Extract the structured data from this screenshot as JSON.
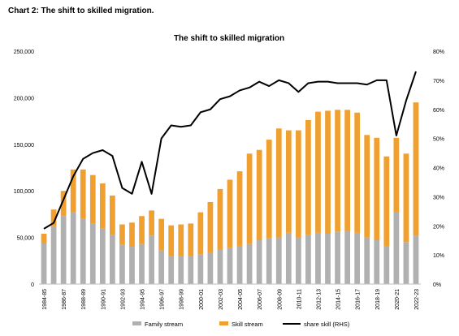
{
  "header": {
    "title": "Chart 2: The shift to skilled migration."
  },
  "chart_data": {
    "type": "bar",
    "stacked": true,
    "title": "The shift to skilled migration",
    "categories": [
      "1984-85",
      "1985-86",
      "1986-87",
      "1987-88",
      "1988-89",
      "1989-90",
      "1990-91",
      "1991-92",
      "1992-93",
      "1993-94",
      "1994-95",
      "1995-96",
      "1996-97",
      "1997-98",
      "1998-99",
      "1999-00",
      "2000-01",
      "2001-02",
      "2002-03",
      "2003-04",
      "2004-05",
      "2005-06",
      "2006-07",
      "2007-08",
      "2008-09",
      "2009-10",
      "2010-11",
      "2011-12",
      "2012-13",
      "2013-14",
      "2014-15",
      "2015-16",
      "2016-17",
      "2017-18",
      "2018-19",
      "2019-20",
      "2020-21",
      "2021-22",
      "2022-23"
    ],
    "tick_labels": [
      "1984-85",
      "1986-87",
      "1988-89",
      "1990-91",
      "1992-93",
      "1994-95",
      "1996-97",
      "1998-99",
      "2000-01",
      "2002-03",
      "2004-05",
      "2006-07",
      "2008-09",
      "2010-11",
      "2012-13",
      "2014-15",
      "2016-17",
      "2018-19",
      "2020-21",
      "2022-23"
    ],
    "series": [
      {
        "name": "Family stream",
        "color": "#b0b0b0",
        "values": [
          44000,
          62000,
          73000,
          77000,
          70000,
          65000,
          60000,
          53000,
          42000,
          40000,
          43000,
          52000,
          36000,
          30000,
          30000,
          30000,
          32000,
          34000,
          37000,
          39000,
          41000,
          43000,
          47000,
          49000,
          50000,
          55000,
          50000,
          53000,
          55000,
          54000,
          56000,
          57000,
          55000,
          50000,
          47000,
          41000,
          77000,
          45000,
          52000
        ]
      },
      {
        "name": "Skill stream",
        "color": "#f0a030",
        "values": [
          10000,
          18000,
          27000,
          46000,
          53000,
          52000,
          48000,
          42000,
          22000,
          26000,
          30000,
          27000,
          34000,
          33000,
          34000,
          35000,
          45000,
          54000,
          65000,
          73000,
          80000,
          97000,
          97000,
          106000,
          117000,
          110000,
          115000,
          123000,
          130000,
          132000,
          131000,
          130000,
          129000,
          110000,
          110000,
          96000,
          80000,
          95000,
          143000
        ]
      },
      {
        "name": "share skill (RHS)",
        "color": "#000000",
        "axis": "right",
        "values": [
          0.19,
          0.21,
          0.29,
          0.37,
          0.43,
          0.45,
          0.46,
          0.44,
          0.33,
          0.31,
          0.42,
          0.31,
          0.5,
          0.545,
          0.54,
          0.545,
          0.59,
          0.6,
          0.635,
          0.645,
          0.665,
          0.675,
          0.695,
          0.68,
          0.7,
          0.69,
          0.66,
          0.69,
          0.695,
          0.695,
          0.69,
          0.69,
          0.69,
          0.685,
          0.7,
          0.7,
          0.51,
          0.63,
          0.73
        ]
      }
    ],
    "y_left": {
      "ylim": [
        0,
        250000
      ],
      "ticks": [
        0,
        50000,
        100000,
        150000,
        200000,
        250000
      ],
      "tick_labels": [
        "0",
        "50,000",
        "100,000",
        "150,000",
        "200,000",
        "250,000"
      ]
    },
    "y_right": {
      "ylim": [
        0,
        0.8
      ],
      "ticks": [
        0,
        0.1,
        0.2,
        0.3,
        0.4,
        0.5,
        0.6,
        0.7,
        0.8
      ],
      "tick_labels": [
        "0%",
        "10%",
        "20%",
        "30%",
        "40%",
        "50%",
        "60%",
        "70%",
        "80%"
      ]
    },
    "grid": false,
    "legend_position": "bottom"
  }
}
